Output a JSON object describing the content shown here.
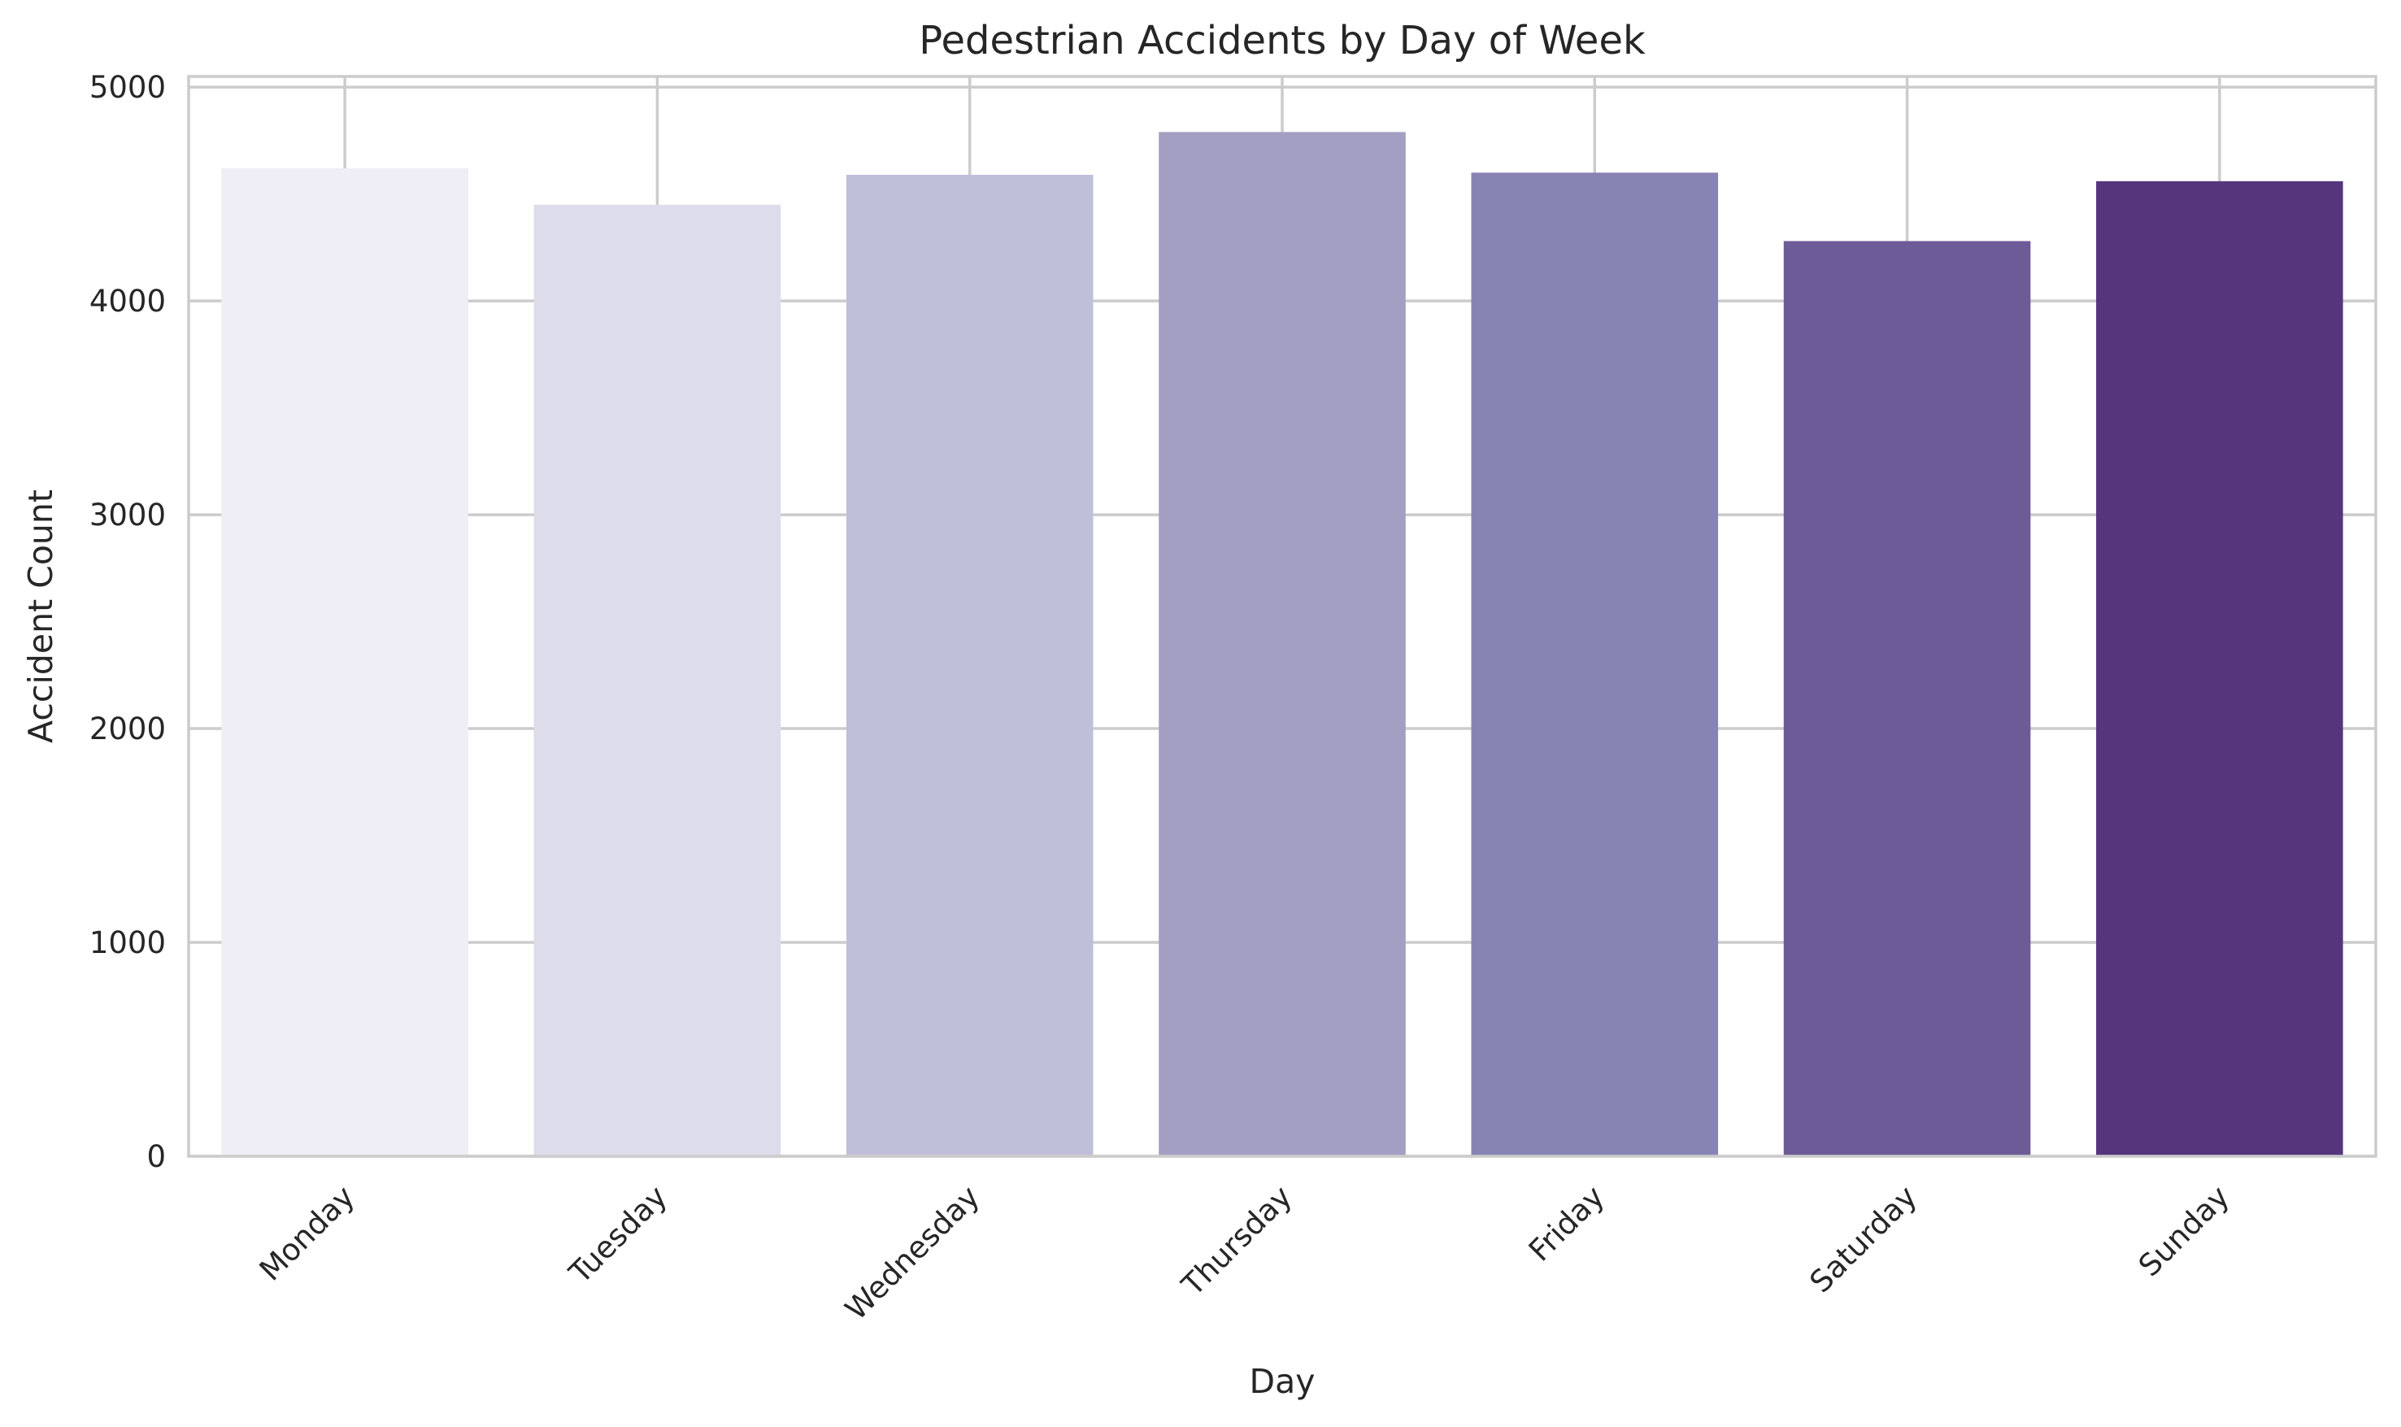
{
  "chart_data": {
    "type": "bar",
    "title": "Pedestrian Accidents by Day of Week",
    "xlabel": "Day",
    "ylabel": "Accident Count",
    "categories": [
      "Monday",
      "Tuesday",
      "Wednesday",
      "Thursday",
      "Friday",
      "Saturday",
      "Sunday"
    ],
    "values": [
      4620,
      4450,
      4590,
      4790,
      4600,
      4280,
      4560
    ],
    "ylim": [
      0,
      5050
    ],
    "yticks": [
      0,
      1000,
      2000,
      3000,
      4000,
      5000
    ],
    "grid": true,
    "legend": "none",
    "colors": [
      "#efedf5",
      "#dcdcea",
      "#bfbfd9",
      "#a39fc3",
      "#8784b4",
      "#6d5b98",
      "#56357d"
    ]
  }
}
